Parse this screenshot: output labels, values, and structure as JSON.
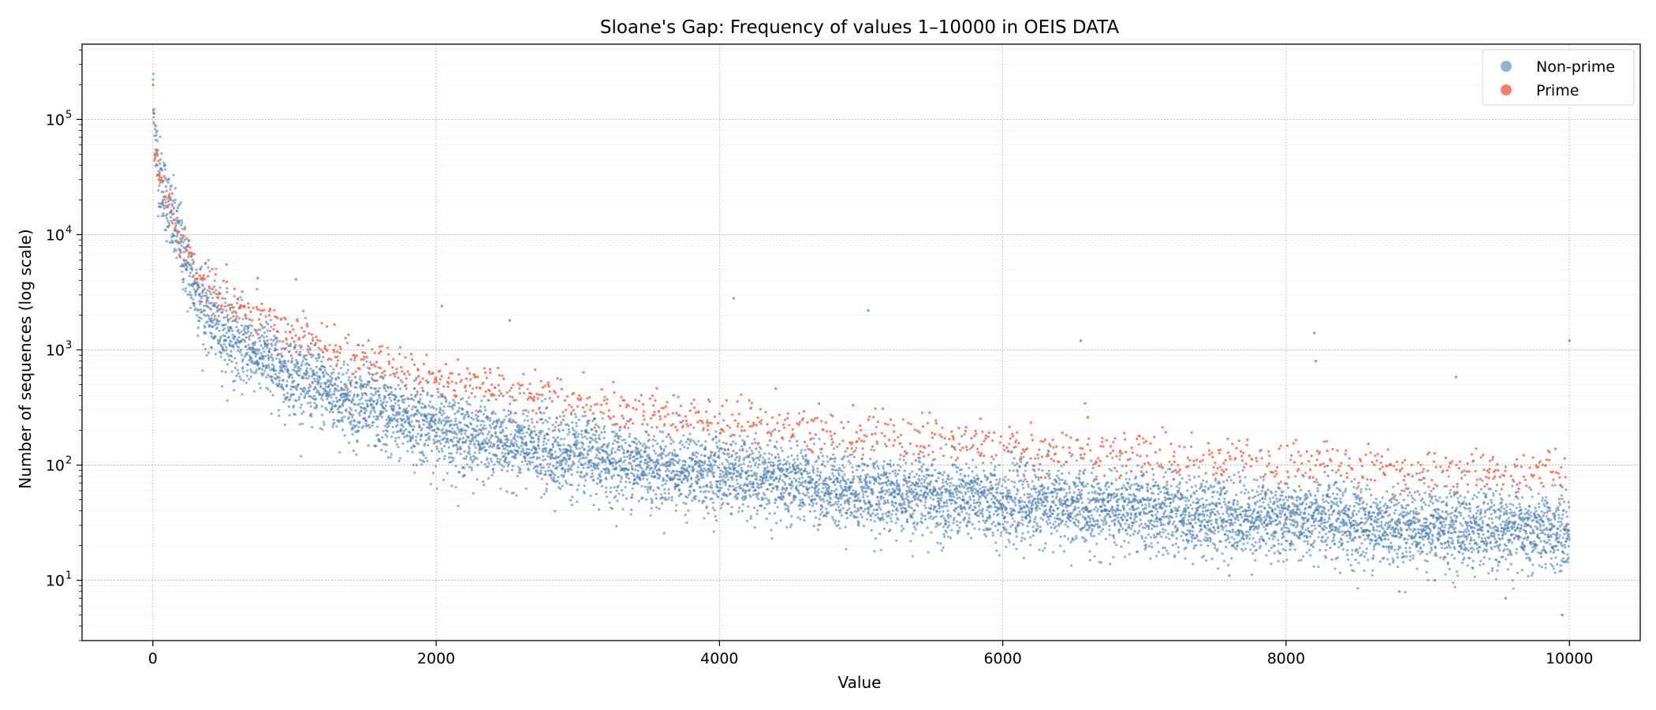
{
  "chart_data": {
    "type": "scatter",
    "title": "Sloane's Gap: Frequency of values 1–10000 in OEIS DATA",
    "xlabel": "Value",
    "ylabel": "Number of sequences (log scale)",
    "xlim": [
      -500,
      10500
    ],
    "ylim": [
      3,
      450000
    ],
    "y_scale": "log",
    "x_ticks": [
      0,
      2000,
      4000,
      6000,
      8000,
      10000
    ],
    "x_tick_labels": [
      "0",
      "2000",
      "4000",
      "6000",
      "8000",
      "10000"
    ],
    "y_ticks": [
      10,
      100,
      1000,
      10000,
      100000
    ],
    "y_tick_labels": [
      "10",
      "10",
      "10",
      "10",
      "10"
    ],
    "y_tick_exponents": [
      "1",
      "2",
      "3",
      "4",
      "5"
    ],
    "grid": true,
    "legend_position": "top-right",
    "series": [
      {
        "name": "Non-prime",
        "color": "#4a7fb0",
        "trend": [
          [
            1,
            250000
          ],
          [
            10,
            100000
          ],
          [
            25,
            55000
          ],
          [
            50,
            33000
          ],
          [
            100,
            19000
          ],
          [
            150,
            12000
          ],
          [
            200,
            8000
          ],
          [
            300,
            3500
          ],
          [
            400,
            2000
          ],
          [
            500,
            1450
          ],
          [
            700,
            1000
          ],
          [
            1000,
            620
          ],
          [
            1500,
            320
          ],
          [
            2000,
            215
          ],
          [
            2500,
            155
          ],
          [
            3000,
            120
          ],
          [
            4000,
            85
          ],
          [
            5000,
            60
          ],
          [
            6000,
            48
          ],
          [
            7000,
            40
          ],
          [
            8000,
            34
          ],
          [
            9000,
            29
          ],
          [
            10000,
            26
          ]
        ],
        "spread_log10": 0.17,
        "outliers": [
          [
            520,
            5500
          ],
          [
            740,
            4200
          ],
          [
            1010,
            4100
          ],
          [
            2040,
            2400
          ],
          [
            2520,
            1800
          ],
          [
            4100,
            2800
          ],
          [
            5050,
            2200
          ],
          [
            6550,
            1200
          ],
          [
            8200,
            1400
          ],
          [
            9200,
            580
          ],
          [
            9550,
            7
          ],
          [
            9950,
            5
          ],
          [
            10000,
            1200
          ],
          [
            8800,
            8
          ],
          [
            9050,
            10
          ],
          [
            7600,
            11
          ]
        ]
      },
      {
        "name": "Prime",
        "color": "#f4694f",
        "trend": [
          [
            2,
            160000
          ],
          [
            10,
            75000
          ],
          [
            30,
            40000
          ],
          [
            60,
            27000
          ],
          [
            100,
            20000
          ],
          [
            150,
            14000
          ],
          [
            200,
            9000
          ],
          [
            300,
            5000
          ],
          [
            400,
            3500
          ],
          [
            500,
            2700
          ],
          [
            700,
            1900
          ],
          [
            1000,
            1350
          ],
          [
            1500,
            850
          ],
          [
            2000,
            600
          ],
          [
            2500,
            450
          ],
          [
            3000,
            340
          ],
          [
            3500,
            290
          ],
          [
            4000,
            240
          ],
          [
            4500,
            210
          ],
          [
            5000,
            180
          ],
          [
            5500,
            165
          ],
          [
            6000,
            145
          ],
          [
            6500,
            130
          ],
          [
            7000,
            120
          ],
          [
            7500,
            110
          ],
          [
            8000,
            105
          ],
          [
            8500,
            95
          ],
          [
            9000,
            90
          ],
          [
            9500,
            85
          ],
          [
            10000,
            85
          ]
        ],
        "spread_log10": 0.1,
        "outliers": [
          [
            8210,
            800
          ],
          [
            6600,
            260
          ]
        ]
      }
    ]
  }
}
